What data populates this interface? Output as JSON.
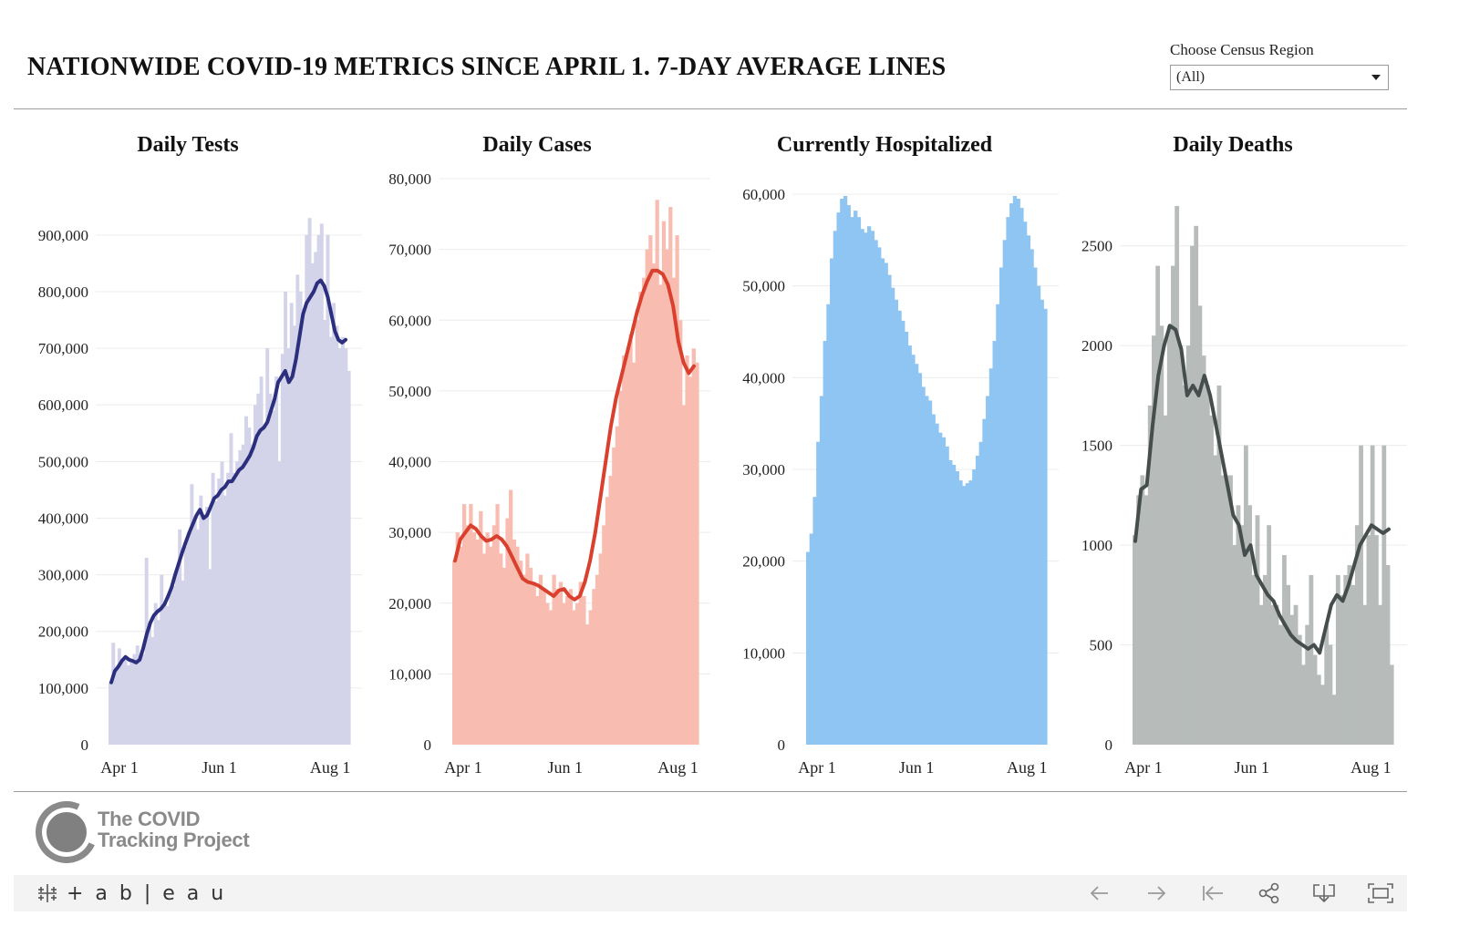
{
  "title": "NATIONWIDE COVID-19 METRICS SINCE APRIL 1. 7-DAY AVERAGE LINES",
  "filter": {
    "label": "Choose Census Region",
    "value": "(All)"
  },
  "footer": {
    "logo_line1": "The COVID",
    "logo_line2": "Tracking Project",
    "tableau_word": "+ a b | e a u"
  },
  "toolbar_icons": [
    "undo-icon",
    "redo-icon",
    "revert-icon",
    "share-icon",
    "download-icon",
    "fullscreen-icon"
  ],
  "chart_data": [
    {
      "type": "bar",
      "title": "Daily Tests",
      "x_ticks": [
        "Apr 1",
        "Jun 1",
        "Aug 1"
      ],
      "y_ticks": [
        "0",
        "100,000",
        "200,000",
        "300,000",
        "400,000",
        "500,000",
        "600,000",
        "700,000",
        "800,000",
        "900,000"
      ],
      "ylim": [
        0,
        940000
      ],
      "bar_color": "#d3d3e9",
      "line_color": "#2b2f7e",
      "daily_values": [
        110000,
        180000,
        130000,
        170000,
        145000,
        150000,
        140000,
        150000,
        160000,
        175000,
        150000,
        160000,
        330000,
        215000,
        190000,
        250000,
        220000,
        300000,
        250000,
        245000,
        270000,
        280000,
        310000,
        380000,
        290000,
        350000,
        370000,
        460000,
        400000,
        380000,
        440000,
        400000,
        420000,
        310000,
        480000,
        430000,
        470000,
        500000,
        440000,
        480000,
        550000,
        480000,
        500000,
        520000,
        530000,
        580000,
        560000,
        530000,
        600000,
        620000,
        650000,
        560000,
        700000,
        620000,
        590000,
        650000,
        500000,
        690000,
        800000,
        700000,
        780000,
        740000,
        830000,
        800000,
        770000,
        900000,
        930000,
        850000,
        870000,
        900000,
        920000,
        750000,
        900000,
        720000,
        780000,
        740000,
        700000,
        720000,
        700000,
        660000
      ],
      "avg_values": [
        110000,
        130000,
        138000,
        148000,
        155000,
        150000,
        148000,
        145000,
        150000,
        170000,
        195000,
        215000,
        228000,
        235000,
        240000,
        248000,
        262000,
        278000,
        300000,
        320000,
        340000,
        358000,
        375000,
        390000,
        405000,
        415000,
        400000,
        405000,
        420000,
        435000,
        440000,
        450000,
        455000,
        465000,
        465000,
        475000,
        485000,
        490000,
        500000,
        510000,
        525000,
        545000,
        555000,
        560000,
        570000,
        590000,
        610000,
        640000,
        650000,
        660000,
        640000,
        650000,
        680000,
        720000,
        760000,
        780000,
        790000,
        800000,
        815000,
        820000,
        810000,
        790000,
        760000,
        730000,
        715000,
        710000,
        715000
      ],
      "date_start": "Apr 1",
      "tick_positions": [
        0,
        61,
        122
      ],
      "n_days": 140
    },
    {
      "type": "bar",
      "title": "Daily Cases",
      "x_ticks": [
        "Apr 1",
        "Jun 1",
        "Aug 1"
      ],
      "y_ticks": [
        "0",
        "10,000",
        "20,000",
        "30,000",
        "40,000",
        "50,000",
        "60,000",
        "70,000",
        "80,000"
      ],
      "ylim": [
        0,
        80000
      ],
      "bar_color": "#f9bcb1",
      "line_color": "#d9412e",
      "daily_values": [
        26000,
        30000,
        28000,
        34000,
        31000,
        34000,
        30000,
        29000,
        33000,
        27000,
        30000,
        28000,
        31000,
        34000,
        27000,
        25000,
        32000,
        36000,
        29000,
        28000,
        26000,
        24000,
        27000,
        25000,
        23000,
        21000,
        24000,
        22000,
        20000,
        19000,
        24000,
        22000,
        23000,
        20000,
        21000,
        22000,
        19000,
        20000,
        23000,
        21000,
        17000,
        19000,
        22000,
        24000,
        27000,
        31000,
        35000,
        38000,
        42000,
        45000,
        50000,
        55000,
        55000,
        58000,
        54000,
        60000,
        64000,
        66000,
        70000,
        72000,
        68000,
        77000,
        65000,
        74000,
        70000,
        76000,
        66000,
        72000,
        60000,
        48000,
        55000,
        52000,
        56000,
        54000
      ],
      "avg_values": [
        26000,
        29000,
        30000,
        31000,
        30500,
        29500,
        28800,
        29000,
        29500,
        29000,
        28000,
        26500,
        25000,
        23500,
        23000,
        22800,
        22500,
        22000,
        21500,
        21000,
        21800,
        22000,
        21000,
        20500,
        21000,
        23000,
        26000,
        30000,
        35000,
        40000,
        45000,
        49000,
        52000,
        55000,
        58000,
        61000,
        63500,
        65500,
        67000,
        67000,
        66500,
        65000,
        62000,
        57000,
        54000,
        52500,
        53500
      ],
      "date_start": "Apr 1",
      "tick_positions": [
        0,
        61,
        122
      ],
      "n_days": 140
    },
    {
      "type": "bar",
      "title": "Currently Hospitalized",
      "x_ticks": [
        "Apr 1",
        "Jun 1",
        "Aug 1"
      ],
      "y_ticks": [
        "0",
        "10,000",
        "20,000",
        "30,000",
        "40,000",
        "50,000",
        "60,000"
      ],
      "ylim": [
        0,
        60000
      ],
      "bar_color": "#8ec5f2",
      "daily_values": [
        21000,
        23000,
        27000,
        33000,
        38000,
        44000,
        48000,
        53000,
        56000,
        58000,
        59500,
        59800,
        58800,
        57500,
        58200,
        57500,
        56200,
        55800,
        56500,
        56000,
        55000,
        54200,
        53000,
        52500,
        51200,
        49800,
        48500,
        47300,
        46200,
        45000,
        43500,
        42500,
        41500,
        40500,
        39000,
        38000,
        37500,
        36000,
        35000,
        34000,
        33500,
        32500,
        31000,
        30500,
        29800,
        28800,
        28200,
        28500,
        28800,
        30000,
        31500,
        33000,
        35500,
        38000,
        41000,
        44000,
        48000,
        52000,
        55000,
        57500,
        59000,
        59800,
        59500,
        58500,
        57000,
        55500,
        54000,
        52000,
        50000,
        48500,
        47500
      ],
      "date_start": "Apr 1",
      "tick_positions": [
        0,
        61,
        122
      ],
      "n_days": 140
    },
    {
      "type": "bar",
      "title": "Daily Deaths",
      "x_ticks": [
        "Apr 1",
        "Jun 1",
        "Aug 1"
      ],
      "y_ticks": [
        "0",
        "500",
        "1000",
        "1500",
        "2000",
        "2500"
      ],
      "ylim": [
        0,
        2750
      ],
      "bar_color": "#b7bcbb",
      "line_color": "#464d4d",
      "daily_values": [
        1050,
        1250,
        1350,
        1250,
        1700,
        2050,
        2400,
        2100,
        1650,
        2100,
        2400,
        2700,
        2000,
        1800,
        2000,
        2500,
        2600,
        2200,
        1950,
        1800,
        1650,
        1450,
        1800,
        1350,
        1350,
        1350,
        1000,
        1200,
        1100,
        1500,
        1200,
        850,
        1150,
        700,
        850,
        1100,
        700,
        700,
        600,
        950,
        800,
        650,
        700,
        550,
        400,
        600,
        850,
        450,
        350,
        300,
        600,
        500,
        250,
        850,
        750,
        850,
        900,
        800,
        1100,
        1500,
        700,
        1050,
        1500,
        1050,
        700,
        1500,
        900,
        400
      ],
      "avg_values": [
        1020,
        1280,
        1300,
        1600,
        1850,
        2000,
        2100,
        2080,
        1980,
        1750,
        1800,
        1750,
        1850,
        1750,
        1600,
        1450,
        1300,
        1150,
        1100,
        950,
        1000,
        850,
        800,
        750,
        720,
        650,
        600,
        550,
        520,
        500,
        480,
        500,
        460,
        580,
        700,
        750,
        720,
        800,
        900,
        1000,
        1050,
        1100,
        1080,
        1060,
        1080
      ],
      "date_start": "Apr 1",
      "tick_positions": [
        0,
        61,
        122
      ],
      "n_days": 140
    }
  ]
}
